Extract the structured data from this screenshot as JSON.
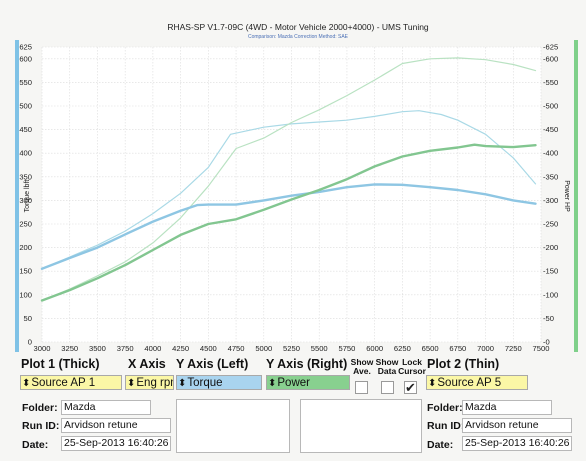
{
  "window": {
    "title": "RHAS-SP V1.7-09C  (4WD - Motor Vehicle 2000+4000) - UMS Tuning",
    "subtitle": "Comparison: Mazda   Correction Method: SAE"
  },
  "chart_data": {
    "type": "line",
    "title": "RHAS-SP V1.7-09C  (4WD - Motor Vehicle 2000+4000) - UMS Tuning",
    "subtitle": "Comparison: Mazda   Correction Method: SAE",
    "xlabel": "",
    "ylabel_left": "Torque lbft",
    "ylabel_right": "Power HP",
    "xlim": [
      3000,
      7500
    ],
    "ylim_left": [
      0,
      625
    ],
    "ylim_right": [
      0,
      625
    ],
    "x_ticks": [
      "3000",
      "3250",
      "3500",
      "3750",
      "4000",
      "4250",
      "4500",
      "4750",
      "5000",
      "5250",
      "5500",
      "5750",
      "6000",
      "6250",
      "6500",
      "6750",
      "7000",
      "7250",
      "7500"
    ],
    "y_ticks_left": [
      "0",
      "50",
      "100",
      "150",
      "200",
      "250",
      "300",
      "350",
      "400",
      "450",
      "500",
      "550",
      "600",
      "625"
    ],
    "y_ticks_right": [
      "0",
      "50",
      "100",
      "150",
      "200",
      "250",
      "300",
      "350",
      "400",
      "450",
      "500",
      "550",
      "600",
      "625"
    ],
    "grid": true,
    "series": [
      {
        "name": "Torque",
        "plot": "Plot 1 (Thick)",
        "axis": "left",
        "color": "#8ec6e3",
        "width": 2.4,
        "x": [
          3000,
          3250,
          3500,
          3750,
          4000,
          4250,
          4400,
          4500,
          4750,
          5000,
          5250,
          5500,
          5750,
          6000,
          6250,
          6500,
          6750,
          7000,
          7250,
          7450
        ],
        "y": [
          155,
          178,
          200,
          228,
          255,
          278,
          290,
          291,
          291,
          300,
          310,
          318,
          328,
          334,
          333,
          328,
          322,
          313,
          300,
          293
        ]
      },
      {
        "name": "Power",
        "plot": "Plot 1 (Thick)",
        "axis": "right",
        "color": "#82c690",
        "width": 2.4,
        "x": [
          3000,
          3250,
          3500,
          3750,
          4000,
          4250,
          4500,
          4750,
          5000,
          5250,
          5500,
          5750,
          6000,
          6250,
          6500,
          6750,
          6900,
          7000,
          7250,
          7450
        ],
        "y": [
          88,
          110,
          135,
          163,
          195,
          227,
          250,
          260,
          280,
          302,
          322,
          345,
          372,
          393,
          405,
          412,
          418,
          415,
          413,
          417
        ]
      },
      {
        "name": "Torque",
        "plot": "Plot 2 (Thin)",
        "axis": "left",
        "color": "#a9d9e6",
        "width": 1.2,
        "x": [
          3000,
          3250,
          3500,
          3750,
          4000,
          4250,
          4500,
          4700,
          4900,
          5000,
          5250,
          5500,
          5750,
          6000,
          6250,
          6400,
          6600,
          6750,
          7000,
          7250,
          7450
        ],
        "y": [
          155,
          180,
          205,
          235,
          272,
          315,
          370,
          440,
          450,
          455,
          462,
          466,
          470,
          478,
          488,
          490,
          482,
          470,
          440,
          390,
          335
        ]
      },
      {
        "name": "Power",
        "plot": "Plot 2 (Thin)",
        "axis": "right",
        "color": "#b9e2c2",
        "width": 1.2,
        "x": [
          3000,
          3250,
          3500,
          3750,
          4000,
          4250,
          4500,
          4750,
          5000,
          5250,
          5500,
          5750,
          6000,
          6250,
          6500,
          6750,
          7000,
          7250,
          7450
        ],
        "y": [
          88,
          112,
          140,
          170,
          210,
          263,
          330,
          410,
          432,
          465,
          492,
          522,
          555,
          590,
          600,
          602,
          598,
          588,
          575
        ]
      }
    ]
  },
  "controls": {
    "plot1_title": "Plot 1 (Thick)",
    "xaxis_title": "X Axis",
    "yleft_title": "Y Axis (Left)",
    "yright_title": "Y Axis (Right)",
    "show_ave_title": "Show Ave.",
    "show_data_title": "Show Data",
    "lock_cursor_title": "Lock Cursor",
    "plot2_title": "Plot 2 (Thin)",
    "plot1_source": "Source AP 1",
    "xaxis_value": "Eng rpm",
    "yleft_value": "Torque",
    "yright_value": "Power",
    "plot2_source": "Source AP 5",
    "show_ave_checked": false,
    "show_data_checked": false,
    "lock_cursor_checked": true,
    "lock_cursor_mark": "✔",
    "arrow": "⬍"
  },
  "info1": {
    "folder_label": "Folder:",
    "folder": "Mazda",
    "runid_label": "Run ID:",
    "runid": "Arvidson retune",
    "date_label": "Date:",
    "date": "25-Sep-2013  16:40:26"
  },
  "info2": {
    "folder_label": "Folder:",
    "folder": "Mazda",
    "runid_label": "Run ID:",
    "runid": "Arvidson retune",
    "date_label": "Date:",
    "date": "25-Sep-2013  16:40:26"
  },
  "colors": {
    "torque_select": "#a9d4ef",
    "power_select": "#88d08f",
    "source_select": "#fbf7a6",
    "left_bar": "#7fc2e6",
    "right_bar": "#7fd08a"
  }
}
